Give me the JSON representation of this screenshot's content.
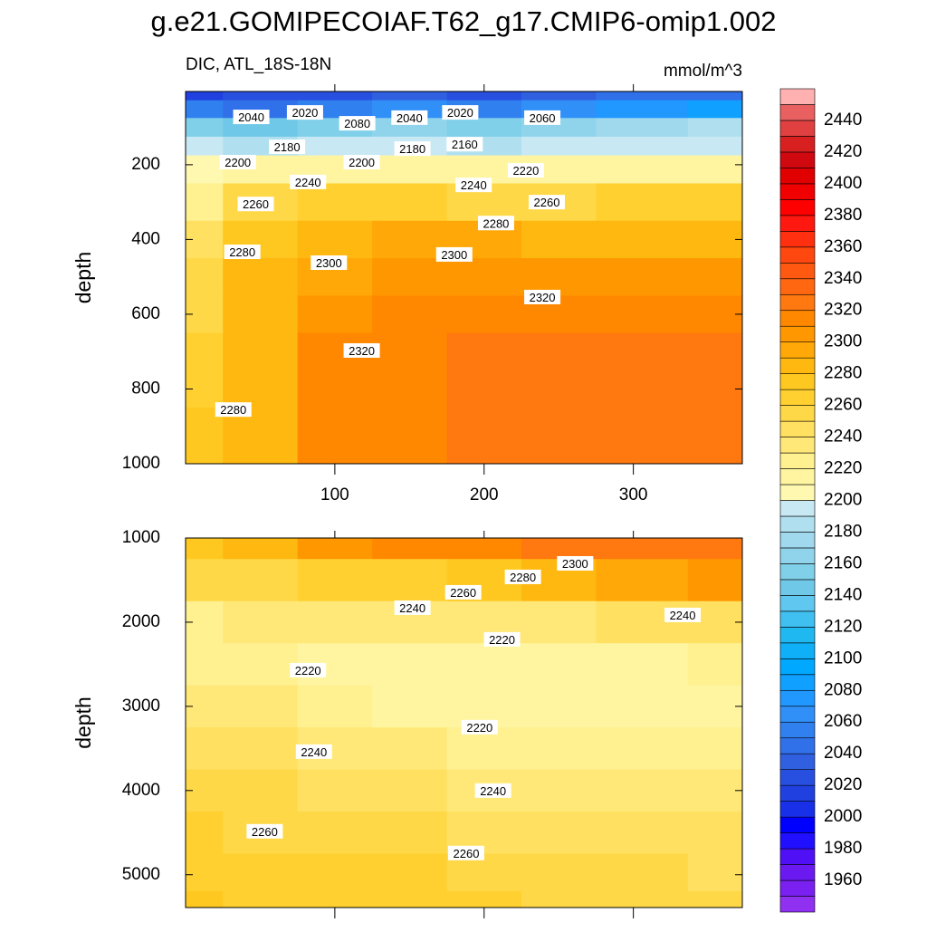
{
  "title": "g.e21.GOMIPECOIAF.T62_g17.CMIP6-omip1.002",
  "left_subtitle": "DIC, ATL_18S-18N",
  "right_subtitle": "mmol/m^3",
  "colorbar": {
    "levels": [
      1950,
      1960,
      1970,
      1980,
      1990,
      2000,
      2010,
      2020,
      2030,
      2040,
      2050,
      2060,
      2070,
      2080,
      2090,
      2100,
      2110,
      2120,
      2130,
      2140,
      2150,
      2160,
      2170,
      2180,
      2190,
      2200,
      2210,
      2220,
      2230,
      2240,
      2250,
      2260,
      2270,
      2280,
      2290,
      2300,
      2310,
      2320,
      2330,
      2340,
      2350,
      2360,
      2370,
      2380,
      2390,
      2400,
      2410,
      2420,
      2430,
      2440,
      2450
    ],
    "colors": [
      "#9030f0",
      "#7a20f0",
      "#6a1af0",
      "#5010f5",
      "#2010ff",
      "#0000ff",
      "#1830e8",
      "#2040e0",
      "#2850e0",
      "#3060e0",
      "#3070e8",
      "#3080f0",
      "#3090f8",
      "#2098ff",
      "#10a0ff",
      "#00a8ff",
      "#10b0f8",
      "#20b8f0",
      "#40c0f0",
      "#60c8f0",
      "#70c8e8",
      "#80d0ea",
      "#90d4ec",
      "#a0d8ee",
      "#b0e0f0",
      "#c8e8f4",
      "#fff8b0",
      "#fff4a0",
      "#fff090",
      "#ffe878",
      "#ffe060",
      "#ffd848",
      "#ffd030",
      "#ffc820",
      "#ffb810",
      "#ffa808",
      "#ff9800",
      "#ff8800",
      "#ff7810",
      "#ff6810",
      "#ff5810",
      "#ff4810",
      "#ff3010",
      "#ff1810",
      "#ff0000",
      "#f00000",
      "#e00000",
      "#d00810",
      "#d82020",
      "#e04040",
      "#e86060",
      "#ffb0b0"
    ],
    "ticks": [
      1960,
      1980,
      2000,
      2020,
      2040,
      2060,
      2080,
      2100,
      2120,
      2140,
      2160,
      2180,
      2200,
      2220,
      2240,
      2260,
      2280,
      2300,
      2320,
      2340,
      2360,
      2380,
      2400,
      2420,
      2440
    ]
  },
  "chart_data": [
    {
      "type": "contour",
      "ylabel": "depth",
      "x": [
        0,
        50,
        100,
        150,
        200,
        250,
        300,
        373
      ],
      "depth": [
        5,
        50,
        100,
        150,
        200,
        300,
        400,
        500,
        600,
        700,
        800,
        900,
        1000
      ],
      "values": [
        [
          2010,
          2020,
          2020,
          2030,
          2020,
          2030,
          2040,
          2040
        ],
        [
          2050,
          2040,
          2050,
          2060,
          2050,
          2060,
          2070,
          2080
        ],
        [
          2150,
          2140,
          2150,
          2160,
          2150,
          2160,
          2170,
          2180
        ],
        [
          2190,
          2185,
          2190,
          2190,
          2185,
          2190,
          2195,
          2195
        ],
        [
          2205,
          2215,
          2215,
          2215,
          2215,
          2215,
          2218,
          2218
        ],
        [
          2225,
          2255,
          2262,
          2262,
          2258,
          2258,
          2260,
          2262
        ],
        [
          2240,
          2275,
          2285,
          2292,
          2292,
          2288,
          2285,
          2285
        ],
        [
          2250,
          2282,
          2297,
          2305,
          2305,
          2305,
          2305,
          2305
        ],
        [
          2258,
          2285,
          2305,
          2312,
          2315,
          2315,
          2318,
          2318
        ],
        [
          2262,
          2285,
          2312,
          2318,
          2320,
          2322,
          2322,
          2322
        ],
        [
          2268,
          2285,
          2315,
          2318,
          2322,
          2322,
          2322,
          2325
        ],
        [
          2272,
          2285,
          2312,
          2318,
          2322,
          2322,
          2322,
          2322
        ],
        [
          2275,
          2285,
          2310,
          2316,
          2320,
          2322,
          2322,
          2322
        ]
      ],
      "xlim": [
        0,
        373
      ],
      "ylim": [
        1000,
        4
      ],
      "xticks": [
        100,
        200,
        300
      ],
      "xticklabels": true,
      "yticks": [
        200,
        400,
        600,
        800,
        1000
      ],
      "contour_labels": [
        {
          "x": 44,
          "depth": 72,
          "value": 2040
        },
        {
          "x": 80,
          "depth": 60,
          "value": 2020
        },
        {
          "x": 115,
          "depth": 89,
          "value": 2080
        },
        {
          "x": 150,
          "depth": 74,
          "value": 2040
        },
        {
          "x": 184,
          "depth": 60,
          "value": 2020
        },
        {
          "x": 239,
          "depth": 74,
          "value": 2060
        },
        {
          "x": 68,
          "depth": 152,
          "value": 2180
        },
        {
          "x": 152,
          "depth": 157,
          "value": 2180
        },
        {
          "x": 187,
          "depth": 145,
          "value": 2160
        },
        {
          "x": 35,
          "depth": 193,
          "value": 2200
        },
        {
          "x": 118,
          "depth": 193,
          "value": 2200
        },
        {
          "x": 228,
          "depth": 215,
          "value": 2220
        },
        {
          "x": 82,
          "depth": 246,
          "value": 2240
        },
        {
          "x": 193,
          "depth": 254,
          "value": 2240
        },
        {
          "x": 47,
          "depth": 305,
          "value": 2260
        },
        {
          "x": 242,
          "depth": 300,
          "value": 2260
        },
        {
          "x": 208,
          "depth": 356,
          "value": 2280
        },
        {
          "x": 38,
          "depth": 433,
          "value": 2280
        },
        {
          "x": 96,
          "depth": 462,
          "value": 2300
        },
        {
          "x": 180,
          "depth": 440,
          "value": 2300
        },
        {
          "x": 239,
          "depth": 554,
          "value": 2320
        },
        {
          "x": 118,
          "depth": 697,
          "value": 2320
        },
        {
          "x": 32,
          "depth": 855,
          "value": 2280
        }
      ]
    },
    {
      "type": "contour",
      "ylabel": "depth",
      "x": [
        0,
        50,
        100,
        150,
        200,
        250,
        300,
        373
      ],
      "depth": [
        1000,
        1500,
        2000,
        2500,
        3000,
        3500,
        4000,
        4500,
        5000,
        5390
      ],
      "values": [
        [
          2275,
          2285,
          2300,
          2310,
          2318,
          2322,
          2322,
          2322
        ],
        [
          2255,
          2255,
          2260,
          2265,
          2270,
          2280,
          2295,
          2305
        ],
        [
          2225,
          2232,
          2235,
          2235,
          2232,
          2235,
          2240,
          2245
        ],
        [
          2225,
          2228,
          2218,
          2215,
          2212,
          2212,
          2215,
          2225
        ],
        [
          2238,
          2232,
          2225,
          2218,
          2215,
          2212,
          2212,
          2215
        ],
        [
          2245,
          2240,
          2236,
          2230,
          2226,
          2225,
          2222,
          2222
        ],
        [
          2252,
          2250,
          2246,
          2242,
          2238,
          2235,
          2232,
          2232
        ],
        [
          2260,
          2258,
          2255,
          2252,
          2248,
          2245,
          2242,
          2240
        ],
        [
          2265,
          2265,
          2262,
          2260,
          2256,
          2252,
          2250,
          2248
        ],
        [
          2270,
          2268,
          2265,
          2264,
          2260,
          2256,
          2254,
          2252
        ]
      ],
      "xlim": [
        0,
        373
      ],
      "ylim": [
        5390,
        1000
      ],
      "xticks": [
        100,
        200,
        300
      ],
      "xticklabels": false,
      "yticks": [
        1000,
        2000,
        3000,
        4000,
        5000
      ],
      "contour_labels": [
        {
          "x": 261,
          "depth": 1301,
          "value": 2300
        },
        {
          "x": 226,
          "depth": 1462,
          "value": 2280
        },
        {
          "x": 186,
          "depth": 1645,
          "value": 2260
        },
        {
          "x": 152,
          "depth": 1828,
          "value": 2240
        },
        {
          "x": 333,
          "depth": 1914,
          "value": 2240
        },
        {
          "x": 212,
          "depth": 2204,
          "value": 2220
        },
        {
          "x": 82,
          "depth": 2570,
          "value": 2220
        },
        {
          "x": 197,
          "depth": 3247,
          "value": 2220
        },
        {
          "x": 86,
          "depth": 3538,
          "value": 2240
        },
        {
          "x": 206,
          "depth": 4000,
          "value": 2240
        },
        {
          "x": 53,
          "depth": 4484,
          "value": 2260
        },
        {
          "x": 188,
          "depth": 4742,
          "value": 2260
        }
      ]
    }
  ]
}
